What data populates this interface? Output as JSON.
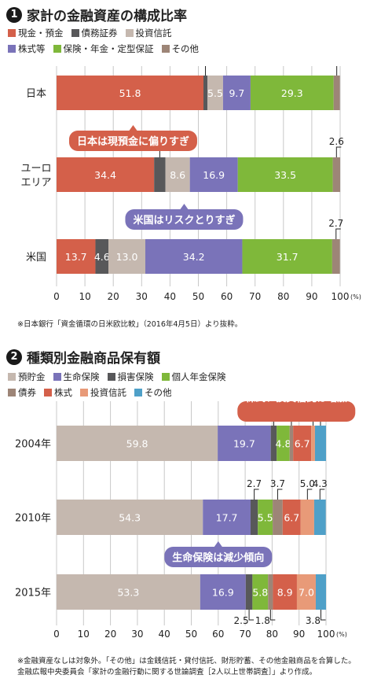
{
  "chart_data": [
    {
      "type": "bar",
      "stacked": true,
      "orientation": "horizontal",
      "number": "1",
      "title": "家計の金融資産の構成比率",
      "unit": "(%)",
      "xlim": [
        0,
        100
      ],
      "ticks": [
        0,
        10,
        20,
        30,
        40,
        50,
        60,
        70,
        80,
        90,
        100
      ],
      "grid": true,
      "legend_rows": [
        [
          "現金・預金",
          "債務証券",
          "投資信託"
        ],
        [
          "株式等",
          "保険・年金・定型保証",
          "その他"
        ]
      ],
      "colors": {
        "現金・預金": "#d4604a",
        "債務証券": "#58585a",
        "投資信託": "#c5b8af",
        "株式等": "#7a73b9",
        "保険・年金・定型保証": "#7fb83a",
        "その他": "#9d8577"
      },
      "categories": [
        "日本",
        "ユーロ\nエリア",
        "米国"
      ],
      "series": [
        {
          "name": "現金・預金",
          "values": [
            51.8,
            34.4,
            13.7
          ],
          "labels": [
            "51.8",
            "34.4",
            "13.7"
          ]
        },
        {
          "name": "債務証券",
          "values": [
            1.4,
            4.0,
            4.6
          ],
          "labels": [
            "1.4",
            "4.0",
            "4.6"
          ]
        },
        {
          "name": "投資信託",
          "values": [
            5.5,
            8.6,
            13.0
          ],
          "labels": [
            "5.5",
            "8.6",
            "13.0"
          ]
        },
        {
          "name": "株式等",
          "values": [
            9.7,
            16.9,
            34.2
          ],
          "labels": [
            "9.7",
            "16.9",
            "34.2"
          ]
        },
        {
          "name": "保険・年金・定型保証",
          "values": [
            29.3,
            33.5,
            31.7
          ],
          "labels": [
            "29.3",
            "33.5",
            "31.7"
          ]
        },
        {
          "name": "その他",
          "values": [
            2.2,
            2.6,
            2.7
          ],
          "labels": [
            "2.2",
            "2.6",
            "2.7"
          ]
        }
      ],
      "annotations": [
        {
          "text": "日本は現預金に偏りすぎ",
          "color": "#d4604a",
          "after_row": 0,
          "at": 27
        },
        {
          "text": "米国はリスクとりすぎ",
          "color": "#7a73b9",
          "after_row": 1,
          "at": 45
        }
      ],
      "footnote": [
        "※日本銀行「資金循環の日米欧比較」（2016年4月5日）より抜粋。"
      ]
    },
    {
      "type": "bar",
      "stacked": true,
      "orientation": "horizontal",
      "number": "2",
      "title": "種類別金融商品保有額",
      "unit": "(%)",
      "xlim": [
        0,
        100
      ],
      "ticks": [
        0,
        10,
        20,
        30,
        40,
        50,
        60,
        70,
        80,
        90,
        100
      ],
      "grid": true,
      "legend_rows": [
        [
          "預貯金",
          "生命保険",
          "損害保険",
          "個人年金保険"
        ],
        [
          "債券",
          "株式",
          "投資信託",
          "その他"
        ]
      ],
      "colors": {
        "預貯金": "#c5b8af",
        "生命保険": "#7a73b9",
        "損害保険": "#58585a",
        "個人年金保険": "#7fb83a",
        "債券": "#9d8577",
        "株式": "#d4604a",
        "投資信託": "#e89a78",
        "その他": "#4fa0c8"
      },
      "categories": [
        "2004年",
        "2010年",
        "2015年"
      ],
      "series": [
        {
          "name": "預貯金",
          "values": [
            59.8,
            54.3,
            53.3
          ],
          "labels": [
            "59.8",
            "54.3",
            "53.3"
          ]
        },
        {
          "name": "生命保険",
          "values": [
            19.7,
            17.7,
            16.9
          ],
          "labels": [
            "19.7",
            "17.7",
            "16.9"
          ]
        },
        {
          "name": "損害保険",
          "values": [
            2.2,
            2.7,
            2.5
          ],
          "labels": [
            "2.2",
            "2.7",
            "2.5"
          ]
        },
        {
          "name": "個人年金保険",
          "values": [
            4.8,
            5.5,
            5.8
          ],
          "labels": [
            "4.8",
            "5.5",
            "5.8"
          ]
        },
        {
          "name": "債券",
          "values": [
            1.3,
            3.7,
            1.8
          ],
          "labels": [
            "1.3",
            "3.7",
            "1.8"
          ]
        },
        {
          "name": "株式",
          "values": [
            6.7,
            6.7,
            8.9
          ],
          "labels": [
            "6.7",
            "6.7",
            "8.9"
          ]
        },
        {
          "name": "投資信託",
          "values": [
            1.4,
            5.0,
            7.0
          ],
          "labels": [
            "1.4",
            "5.0",
            "7.0"
          ]
        },
        {
          "name": "その他",
          "values": [
            4.1,
            4.3,
            3.8
          ],
          "labels": [
            "4.1",
            "4.3",
            "3.8"
          ]
        }
      ],
      "annotations": [
        {
          "text": "生命保険は減少傾向",
          "color": "#7a73b9",
          "after_row": 1,
          "at": 60
        },
        {
          "text": "株式、投資信託は増加",
          "color": "#d4604a",
          "after_row": 1,
          "at": 89
        }
      ],
      "footnote": [
        "※金融資産なしは対象外。「その他」は金銭信託・貸付信託、財形貯蓄、その他金融商品を合算した。",
        "金融広報中央委員会「家計の金融行動に関する世論調査［2人以上世帯調査］」より作成。"
      ]
    }
  ]
}
